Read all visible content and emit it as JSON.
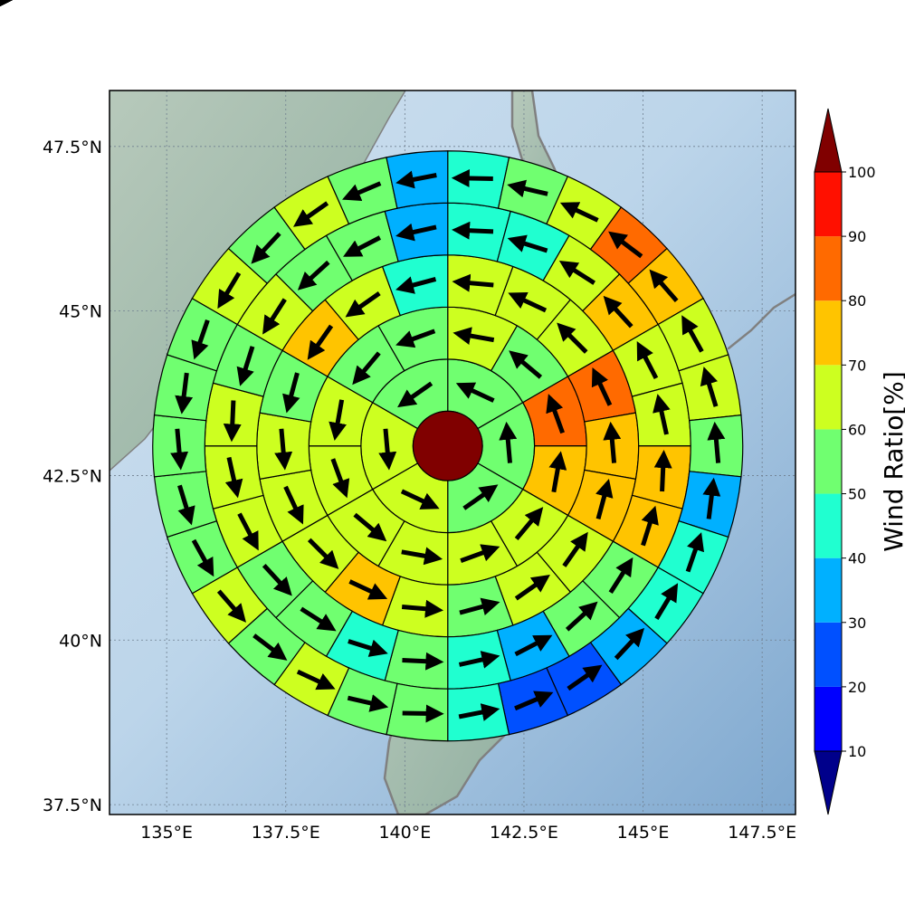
{
  "map": {
    "lon_range": [
      133.8,
      148.2
    ],
    "lat_range": [
      37.35,
      48.35
    ],
    "lon_ticks": [
      {
        "value": 135,
        "label": "135°E"
      },
      {
        "value": 137.5,
        "label": "137.5°E"
      },
      {
        "value": 140,
        "label": "140°E"
      },
      {
        "value": 142.5,
        "label": "142.5°E"
      },
      {
        "value": 145,
        "label": "145°E"
      },
      {
        "value": 147.5,
        "label": "147.5°E"
      }
    ],
    "lat_ticks": [
      {
        "value": 37.5,
        "label": "37.5°N"
      },
      {
        "value": 40,
        "label": "40°N"
      },
      {
        "value": 42.5,
        "label": "42.5°N"
      },
      {
        "value": 45,
        "label": "45°N"
      },
      {
        "value": 47.5,
        "label": "47.5°N"
      }
    ],
    "colors": {
      "ocean": "#a9c8e2",
      "land": "#9fb7a8",
      "coast": "#808080",
      "grid": "#6f7f8f"
    }
  },
  "chart_data": {
    "type": "polar-sector-map",
    "center": {
      "lon": 140.9,
      "lat": 42.95
    },
    "center_value": 100,
    "ring_edges_km": [
      0,
      50,
      125,
      200,
      275,
      350,
      425
    ],
    "sectors_per_ring": [
      null,
      6,
      12,
      18,
      24,
      30,
      36
    ],
    "rings": [
      {
        "ring": 1,
        "values": [
          55,
          55,
          55,
          65,
          65,
          55
        ]
      },
      {
        "ring": 2,
        "values": [
          65,
          55,
          85,
          75,
          65,
          65,
          65,
          65,
          65,
          65,
          55,
          55
        ]
      },
      {
        "ring": 3,
        "values": [
          65,
          65,
          65,
          85,
          75,
          75,
          65,
          65,
          55,
          65,
          75,
          65,
          65,
          65,
          55,
          75,
          65,
          45
        ]
      },
      {
        "ring": 4,
        "values": [
          45,
          45,
          65,
          75,
          65,
          65,
          75,
          75,
          55,
          55,
          35,
          45,
          55,
          45,
          55,
          55,
          65,
          65,
          65,
          55,
          65,
          55,
          55,
          35
        ]
      },
      {
        "ring": 5,
        "values": [
          45,
          55,
          65,
          85,
          75,
          65,
          65,
          55,
          35,
          45,
          45,
          35,
          25,
          25,
          45,
          55,
          55,
          65,
          55,
          65,
          55,
          55,
          55,
          55,
          55,
          65,
          55,
          65,
          55,
          35
        ]
      },
      {
        "ring": 6,
        "values": [
          55,
          45,
          55,
          45,
          55,
          55,
          45,
          45,
          45,
          55,
          35,
          35,
          35,
          25,
          25,
          35,
          35,
          45,
          45,
          55,
          55,
          45,
          45,
          45,
          35,
          55,
          55,
          55,
          55,
          55,
          55,
          65,
          65,
          65,
          65,
          55
        ]
      }
    ],
    "colorbar": {
      "title": "Wind Ratio[%]",
      "ticks": [
        10,
        20,
        30,
        40,
        50,
        60,
        70,
        80,
        90,
        100
      ],
      "bins": [
        {
          "from": 10,
          "to": 20,
          "color": "#0000ff"
        },
        {
          "from": 20,
          "to": 30,
          "color": "#0050ff"
        },
        {
          "from": 30,
          "to": 40,
          "color": "#00b0ff"
        },
        {
          "from": 40,
          "to": 50,
          "color": "#20ffd0"
        },
        {
          "from": 50,
          "to": 60,
          "color": "#70ff70"
        },
        {
          "from": 60,
          "to": 70,
          "color": "#cdff20"
        },
        {
          "from": 70,
          "to": 80,
          "color": "#ffc400"
        },
        {
          "from": 80,
          "to": 90,
          "color": "#ff6a00"
        },
        {
          "from": 90,
          "to": 100,
          "color": "#ff1000"
        }
      ],
      "under_color": "#00008b",
      "over_color": "#800000"
    }
  }
}
